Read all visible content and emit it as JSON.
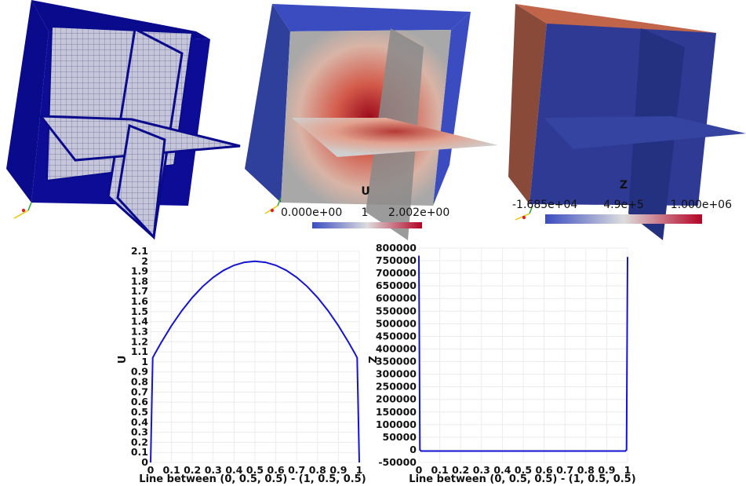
{
  "colorbars": {
    "u": {
      "title": "U",
      "min": "0.000e+00",
      "mid": "1",
      "max": "2.002e+00"
    },
    "z": {
      "title": "Z",
      "min": "-1.685e+04",
      "mid": "4.9e+5",
      "max": "1.000e+06"
    }
  },
  "colors": {
    "mesh_blue": "#0a0a8c",
    "mesh_face": "#c8c8dc",
    "cool_blue": "#3b4cc0",
    "warm_red": "#b40426",
    "neutral": "#dddddd",
    "line_blue": "#1414d2"
  },
  "chart_data": [
    {
      "type": "line",
      "xlabel": "Line between (0, 0.5, 0.5) - (1, 0.5, 0.5)",
      "ylabel": "U",
      "xlim": [
        0,
        1
      ],
      "ylim": [
        0,
        2.1
      ],
      "xticks": [
        "0",
        "0.1",
        "0.2",
        "0.3",
        "0.4",
        "0.5",
        "0.6",
        "0.7",
        "0.8",
        "0.9",
        "1"
      ],
      "yticks": [
        "0",
        "0.1",
        "0.2",
        "0.3",
        "0.4",
        "0.5",
        "0.6",
        "0.7",
        "0.8",
        "0.9",
        "1",
        "1.1",
        "1.2",
        "1.3",
        "1.4",
        "1.5",
        "1.6",
        "1.7",
        "1.8",
        "1.9",
        "2",
        "2.1"
      ],
      "grid": true,
      "series": [
        {
          "color": "#1414d2",
          "x": [
            0,
            0.01,
            0.02,
            0.05,
            0.1,
            0.15,
            0.2,
            0.25,
            0.3,
            0.35,
            0.4,
            0.45,
            0.5,
            0.55,
            0.6,
            0.65,
            0.7,
            0.75,
            0.8,
            0.85,
            0.9,
            0.95,
            0.98,
            0.99,
            1
          ],
          "y": [
            0,
            1.04,
            1.08,
            1.19,
            1.36,
            1.51,
            1.64,
            1.75,
            1.84,
            1.91,
            1.96,
            1.99,
            2.0,
            1.99,
            1.96,
            1.91,
            1.84,
            1.75,
            1.64,
            1.51,
            1.36,
            1.19,
            1.08,
            1.04,
            0
          ]
        }
      ]
    },
    {
      "type": "line",
      "xlabel": "Line between (0, 0.5, 0.5) - (1, 0.5, 0.5)",
      "ylabel": "Z",
      "xlim": [
        0,
        1
      ],
      "ylim": [
        -50000,
        800000
      ],
      "xticks": [
        "0",
        "0.1",
        "0.2",
        "0.3",
        "0.4",
        "0.5",
        "0.6",
        "0.7",
        "0.8",
        "0.9",
        "1"
      ],
      "yticks": [
        "-50000",
        "0",
        "50000",
        "100000",
        "150000",
        "200000",
        "250000",
        "300000",
        "350000",
        "400000",
        "450000",
        "500000",
        "550000",
        "600000",
        "650000",
        "700000",
        "750000",
        "800000"
      ],
      "grid": true,
      "series": [
        {
          "color": "#1414d2",
          "x": [
            0,
            0.005,
            0.01,
            0.99,
            0.995,
            1
          ],
          "y": [
            770000,
            0,
            -5000,
            -5000,
            0,
            765000
          ]
        }
      ]
    }
  ]
}
